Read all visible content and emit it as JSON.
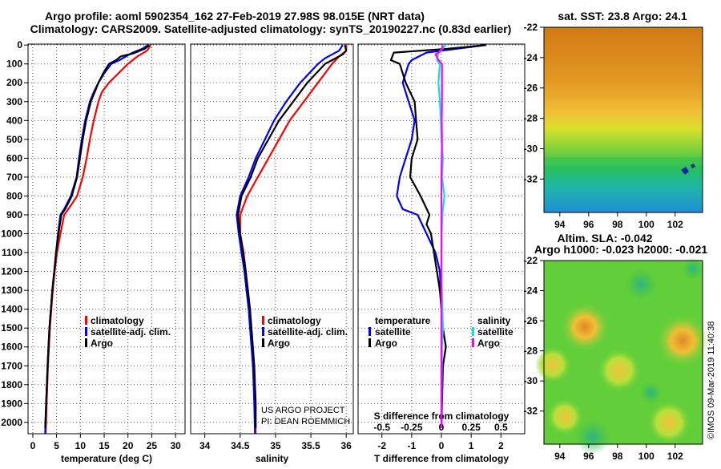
{
  "title_line1": "Argo profile: aoml 5902354_162 27-Feb-2019 27.98S 98.015E (NRT data)",
  "title_line2": "Climatology: CARS2009. Satellite-adjusted climatology: synTS_20190227.nc (0.83d earlier)",
  "colors": {
    "climatology": "#ff0000",
    "satellite": "#0000ff",
    "argo": "#000000",
    "satellite_salinity": "#00e5ee",
    "argo_salinity": "#ff00ff"
  },
  "credits": {
    "project": "US ARGO PROJECT",
    "pi": "PI: DEAN ROEMMICH"
  },
  "stamp": "©IMOS 09-Mar-2019 11:40:38",
  "depth_ticks": [
    "0",
    "100",
    "200",
    "300",
    "400",
    "500",
    "600",
    "700",
    "800",
    "900",
    "1000",
    "1100",
    "1200",
    "1300",
    "1400",
    "1500",
    "1600",
    "1700",
    "1800",
    "1900",
    "2000"
  ],
  "legend": {
    "climatology": "climatology",
    "satellite": "satellite-adj. clim.",
    "argo": "Argo"
  },
  "diff_legend": {
    "temperature": "temperature",
    "salinity": "salinity",
    "satellite": "satellite",
    "argo": "Argo"
  },
  "chart_data": [
    {
      "type": "line",
      "panel": "temperature",
      "xlabel": "temperature (deg C)",
      "xlim": [
        -1,
        32
      ],
      "ylim": [
        2060,
        -5
      ],
      "xticks": [
        "0",
        "5",
        "10",
        "15",
        "20",
        "25",
        "30"
      ],
      "xtick_values": [
        0,
        5,
        10,
        15,
        20,
        25,
        30
      ],
      "series": [
        {
          "name": "climatology",
          "color": "#ff0000",
          "points": [
            [
              24.8,
              0
            ],
            [
              24,
              30
            ],
            [
              22,
              60
            ],
            [
              20,
              100
            ],
            [
              18,
              150
            ],
            [
              16,
              200
            ],
            [
              14.5,
              250
            ],
            [
              13.8,
              300
            ],
            [
              12.8,
              400
            ],
            [
              12,
              500
            ],
            [
              11.3,
              600
            ],
            [
              10.5,
              700
            ],
            [
              9.3,
              800
            ],
            [
              8,
              850
            ],
            [
              6.6,
              900
            ],
            [
              5.8,
              1000
            ],
            [
              5.1,
              1100
            ],
            [
              4.6,
              1200
            ],
            [
              4.2,
              1300
            ],
            [
              3.9,
              1400
            ],
            [
              3.6,
              1500
            ],
            [
              3.4,
              1600
            ],
            [
              3.2,
              1700
            ],
            [
              3.05,
              1800
            ],
            [
              2.9,
              1900
            ],
            [
              2.7,
              2060
            ]
          ]
        },
        {
          "name": "satellite-adj. clim.",
          "color": "#0000ff",
          "points": [
            [
              24.2,
              0
            ],
            [
              23,
              20
            ],
            [
              21,
              40
            ],
            [
              18.2,
              80
            ],
            [
              16.5,
              100
            ],
            [
              15,
              150
            ],
            [
              13.8,
              200
            ],
            [
              12.8,
              250
            ],
            [
              12,
              300
            ],
            [
              11,
              400
            ],
            [
              10.3,
              500
            ],
            [
              9.7,
              600
            ],
            [
              9.2,
              700
            ],
            [
              8,
              800
            ],
            [
              6.6,
              870
            ],
            [
              5.8,
              900
            ],
            [
              5.3,
              1000
            ],
            [
              4.9,
              1100
            ],
            [
              4.5,
              1200
            ],
            [
              4.1,
              1300
            ],
            [
              3.8,
              1400
            ],
            [
              3.5,
              1500
            ],
            [
              3.3,
              1600
            ],
            [
              3.1,
              1700
            ],
            [
              2.95,
              1800
            ],
            [
              2.8,
              1900
            ],
            [
              2.6,
              2060
            ]
          ]
        },
        {
          "name": "Argo",
          "color": "#000000",
          "points": [
            [
              24.5,
              0
            ],
            [
              23.5,
              20
            ],
            [
              21,
              45
            ],
            [
              18.5,
              60
            ],
            [
              17.5,
              80
            ],
            [
              16,
              100
            ],
            [
              14.8,
              150
            ],
            [
              13.8,
              200
            ],
            [
              13,
              250
            ],
            [
              12.2,
              300
            ],
            [
              11.2,
              400
            ],
            [
              10.5,
              500
            ],
            [
              9.9,
              600
            ],
            [
              9.3,
              700
            ],
            [
              8.2,
              800
            ],
            [
              6.8,
              870
            ],
            [
              6,
              900
            ],
            [
              5.4,
              1000
            ],
            [
              4.9,
              1100
            ],
            [
              4.5,
              1200
            ],
            [
              4.1,
              1300
            ],
            [
              3.8,
              1400
            ],
            [
              3.5,
              1500
            ],
            [
              3.3,
              1600
            ],
            [
              3.1,
              1700
            ],
            [
              2.95,
              1800
            ],
            [
              2.8,
              1900
            ],
            [
              2.6,
              2030
            ]
          ]
        }
      ]
    },
    {
      "type": "line",
      "panel": "salinity",
      "xlabel": "salinity",
      "xlim": [
        33.8,
        36.1
      ],
      "ylim": [
        2060,
        -5
      ],
      "xticks": [
        "34",
        "34.5",
        "35",
        "35.5",
        "36"
      ],
      "xtick_values": [
        34,
        34.5,
        35,
        35.5,
        36
      ],
      "series": [
        {
          "name": "climatology",
          "color": "#ff0000",
          "points": [
            [
              36,
              0
            ],
            [
              36,
              30
            ],
            [
              35.9,
              60
            ],
            [
              35.8,
              100
            ],
            [
              35.6,
              200
            ],
            [
              35.4,
              300
            ],
            [
              35.2,
              400
            ],
            [
              35.05,
              500
            ],
            [
              34.9,
              600
            ],
            [
              34.75,
              700
            ],
            [
              34.6,
              800
            ],
            [
              34.5,
              900
            ],
            [
              34.5,
              1000
            ],
            [
              34.55,
              1100
            ],
            [
              34.58,
              1200
            ],
            [
              34.6,
              1300
            ],
            [
              34.63,
              1400
            ],
            [
              34.65,
              1500
            ],
            [
              34.67,
              1600
            ],
            [
              34.69,
              1700
            ],
            [
              34.7,
              1800
            ],
            [
              34.71,
              1900
            ],
            [
              34.72,
              2060
            ]
          ]
        },
        {
          "name": "satellite-adj. clim.",
          "color": "#0000ff",
          "points": [
            [
              35.95,
              0
            ],
            [
              35.9,
              30
            ],
            [
              35.7,
              70
            ],
            [
              35.6,
              100
            ],
            [
              35.35,
              200
            ],
            [
              35.15,
              300
            ],
            [
              34.98,
              400
            ],
            [
              34.85,
              500
            ],
            [
              34.72,
              600
            ],
            [
              34.62,
              700
            ],
            [
              34.5,
              800
            ],
            [
              34.45,
              900
            ],
            [
              34.48,
              1000
            ],
            [
              34.52,
              1100
            ],
            [
              34.56,
              1200
            ],
            [
              34.59,
              1300
            ],
            [
              34.62,
              1400
            ],
            [
              34.64,
              1500
            ],
            [
              34.66,
              1600
            ],
            [
              34.68,
              1700
            ],
            [
              34.69,
              1800
            ],
            [
              34.7,
              1900
            ],
            [
              34.71,
              2060
            ]
          ]
        },
        {
          "name": "Argo",
          "color": "#000000",
          "points": [
            [
              35.98,
              0
            ],
            [
              36,
              30
            ],
            [
              35.95,
              50
            ],
            [
              35.8,
              80
            ],
            [
              35.7,
              100
            ],
            [
              35.45,
              200
            ],
            [
              35.25,
              300
            ],
            [
              35.05,
              400
            ],
            [
              34.9,
              500
            ],
            [
              34.75,
              600
            ],
            [
              34.65,
              700
            ],
            [
              34.52,
              800
            ],
            [
              34.47,
              900
            ],
            [
              34.5,
              1000
            ],
            [
              34.54,
              1100
            ],
            [
              34.58,
              1200
            ],
            [
              34.61,
              1300
            ],
            [
              34.64,
              1400
            ],
            [
              34.66,
              1500
            ],
            [
              34.68,
              1600
            ],
            [
              34.7,
              1700
            ],
            [
              34.71,
              1800
            ],
            [
              34.72,
              1900
            ],
            [
              34.72,
              2030
            ]
          ]
        }
      ]
    },
    {
      "type": "line",
      "panel": "difference",
      "xlabel": "T difference from climatology",
      "x2label": "S difference from climatology",
      "xlim": [
        -2.8,
        2.8
      ],
      "ylim": [
        2060,
        -5
      ],
      "xticks": [
        "-2",
        "-1",
        "0",
        "1",
        "2"
      ],
      "xtick_values": [
        -2,
        -1,
        0,
        1,
        2
      ],
      "x2ticks": [
        "-0.5",
        "-0.25",
        "0",
        "0.25",
        "0.5"
      ],
      "x2tick_values": [
        -0.5,
        -0.25,
        0,
        0.25,
        0.5
      ],
      "series": [
        {
          "name": "temperature satellite",
          "color": "#0000ff",
          "points": [
            [
              1.5,
              0
            ],
            [
              0.5,
              20
            ],
            [
              -0.5,
              40
            ],
            [
              -1,
              80
            ],
            [
              -1.1,
              100
            ],
            [
              -1.3,
              200
            ],
            [
              -1.1,
              300
            ],
            [
              -0.9,
              400
            ],
            [
              -1,
              500
            ],
            [
              -1.2,
              600
            ],
            [
              -1.4,
              700
            ],
            [
              -1.5,
              800
            ],
            [
              -1.3,
              870
            ],
            [
              -0.8,
              900
            ],
            [
              -0.5,
              1000
            ],
            [
              -0.2,
              1100
            ],
            [
              -0.05,
              1200
            ],
            [
              0,
              1400
            ],
            [
              0,
              2030
            ]
          ]
        },
        {
          "name": "temperature Argo",
          "color": "#000000",
          "points": [
            [
              1.5,
              0
            ],
            [
              0.2,
              20
            ],
            [
              -1.6,
              40
            ],
            [
              -1.7,
              80
            ],
            [
              -1.4,
              100
            ],
            [
              -1.2,
              200
            ],
            [
              -0.9,
              300
            ],
            [
              -0.85,
              400
            ],
            [
              -0.8,
              500
            ],
            [
              -1,
              600
            ],
            [
              -1.05,
              700
            ],
            [
              -0.7,
              800
            ],
            [
              -0.4,
              900
            ],
            [
              -0.5,
              950
            ],
            [
              -0.35,
              1000
            ],
            [
              -0.25,
              1100
            ],
            [
              -0.15,
              1200
            ],
            [
              -0.05,
              1300
            ],
            [
              0.05,
              1500
            ],
            [
              0.15,
              1600
            ],
            [
              0.05,
              1700
            ],
            [
              0,
              2030
            ]
          ]
        },
        {
          "name": "salinity satellite",
          "color": "#00e5ee",
          "points": [
            [
              0.15,
              0
            ],
            [
              -0.1,
              40
            ],
            [
              -0.15,
              80
            ],
            [
              -0.05,
              100
            ],
            [
              -0.1,
              200
            ],
            [
              -0.05,
              300
            ],
            [
              -0.02,
              400
            ],
            [
              0,
              500
            ],
            [
              0.05,
              600
            ],
            [
              0.02,
              700
            ],
            [
              0.1,
              800
            ],
            [
              0.03,
              900
            ],
            [
              0.01,
              1000
            ],
            [
              0,
              1200
            ],
            [
              0.05,
              1500
            ],
            [
              0.02,
              1600
            ],
            [
              0,
              2030
            ]
          ]
        },
        {
          "name": "salinity Argo",
          "color": "#ff00ff",
          "points": [
            [
              0.05,
              0
            ],
            [
              0,
              30
            ],
            [
              -0.2,
              50
            ],
            [
              -0.1,
              80
            ],
            [
              0.02,
              100
            ],
            [
              0.02,
              200
            ],
            [
              0.02,
              300
            ],
            [
              0.01,
              400
            ],
            [
              0.02,
              500
            ],
            [
              0.01,
              600
            ],
            [
              0,
              700
            ],
            [
              0,
              1200
            ],
            [
              0,
              2030
            ]
          ]
        }
      ]
    }
  ],
  "maps": {
    "sst": {
      "title": "sat. SST: 23.8  Argo: 24.1",
      "lat_ticks": [
        "-22",
        "-24",
        "-26",
        "-28",
        "-30",
        "-32"
      ],
      "lon_ticks": [
        "94",
        "96",
        "98",
        "100",
        "102"
      ]
    },
    "sla": {
      "title1": "Altim. SLA: -0.042",
      "title2": "Argo h1000: -0.023 h2000: -0.021",
      "lat_ticks": [
        "-22",
        "-24",
        "-26",
        "-28",
        "-30",
        "-32"
      ],
      "lon_ticks": [
        "94",
        "96",
        "98",
        "100",
        "102"
      ]
    }
  }
}
